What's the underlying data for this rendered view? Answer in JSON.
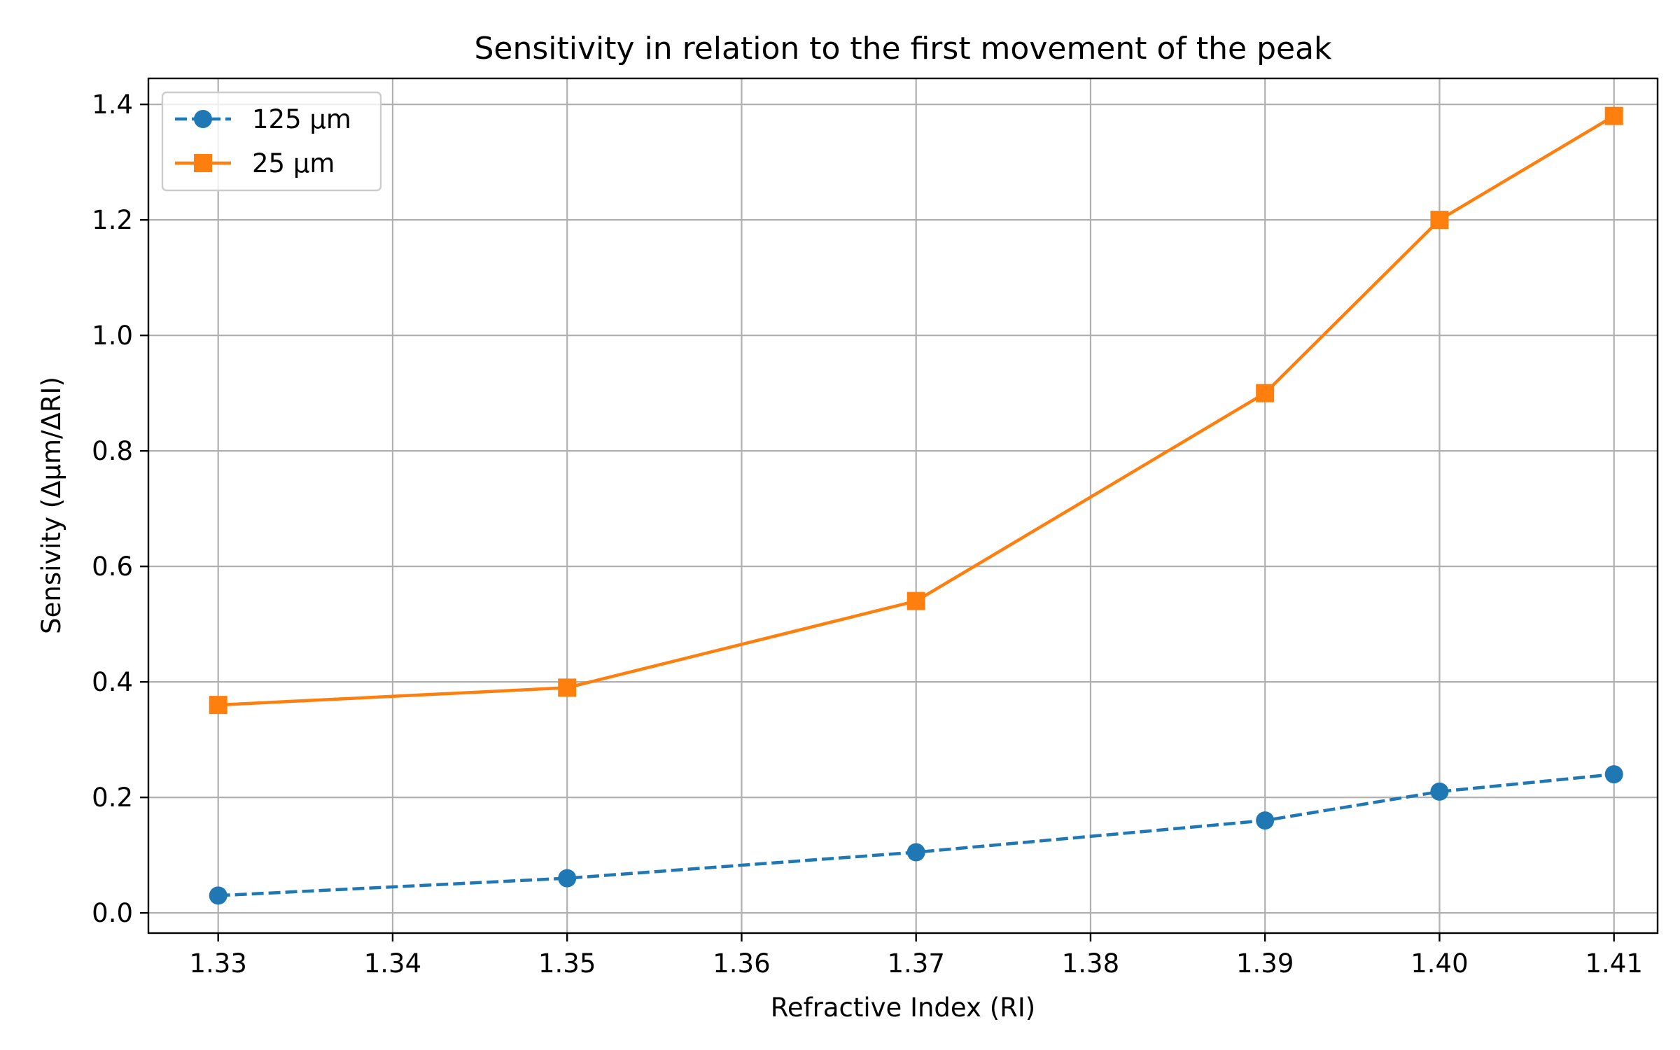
{
  "chart_data": {
    "type": "line",
    "title": "Sensitivity in relation to the first movement of the peak",
    "xlabel": "Refractive Index (RI)",
    "ylabel": "Sensivity (Δμm/ΔRI)",
    "xlim": [
      1.326,
      1.4125
    ],
    "ylim": [
      -0.035,
      1.445
    ],
    "x_ticks": [
      1.33,
      1.34,
      1.35,
      1.36,
      1.37,
      1.38,
      1.39,
      1.4,
      1.41
    ],
    "x_tick_labels": [
      "1.33",
      "1.34",
      "1.35",
      "1.36",
      "1.37",
      "1.38",
      "1.39",
      "1.40",
      "1.41"
    ],
    "y_ticks": [
      0.0,
      0.2,
      0.4,
      0.6,
      0.8,
      1.0,
      1.2,
      1.4
    ],
    "y_tick_labels": [
      "0.0",
      "0.2",
      "0.4",
      "0.6",
      "0.8",
      "1.0",
      "1.2",
      "1.4"
    ],
    "grid": true,
    "legend_position": "top-left",
    "series": [
      {
        "name": "125 µm",
        "color": "#1f77b4",
        "line_style": "dashed",
        "marker": "circle",
        "x": [
          1.33,
          1.35,
          1.37,
          1.39,
          1.4,
          1.41
        ],
        "y": [
          0.03,
          0.06,
          0.105,
          0.16,
          0.21,
          0.24
        ]
      },
      {
        "name": "25 µm",
        "color": "#ff7f0e",
        "line_style": "solid",
        "marker": "square",
        "x": [
          1.33,
          1.35,
          1.37,
          1.39,
          1.4,
          1.41
        ],
        "y": [
          0.36,
          0.39,
          0.54,
          0.9,
          1.2,
          1.38
        ]
      }
    ]
  }
}
